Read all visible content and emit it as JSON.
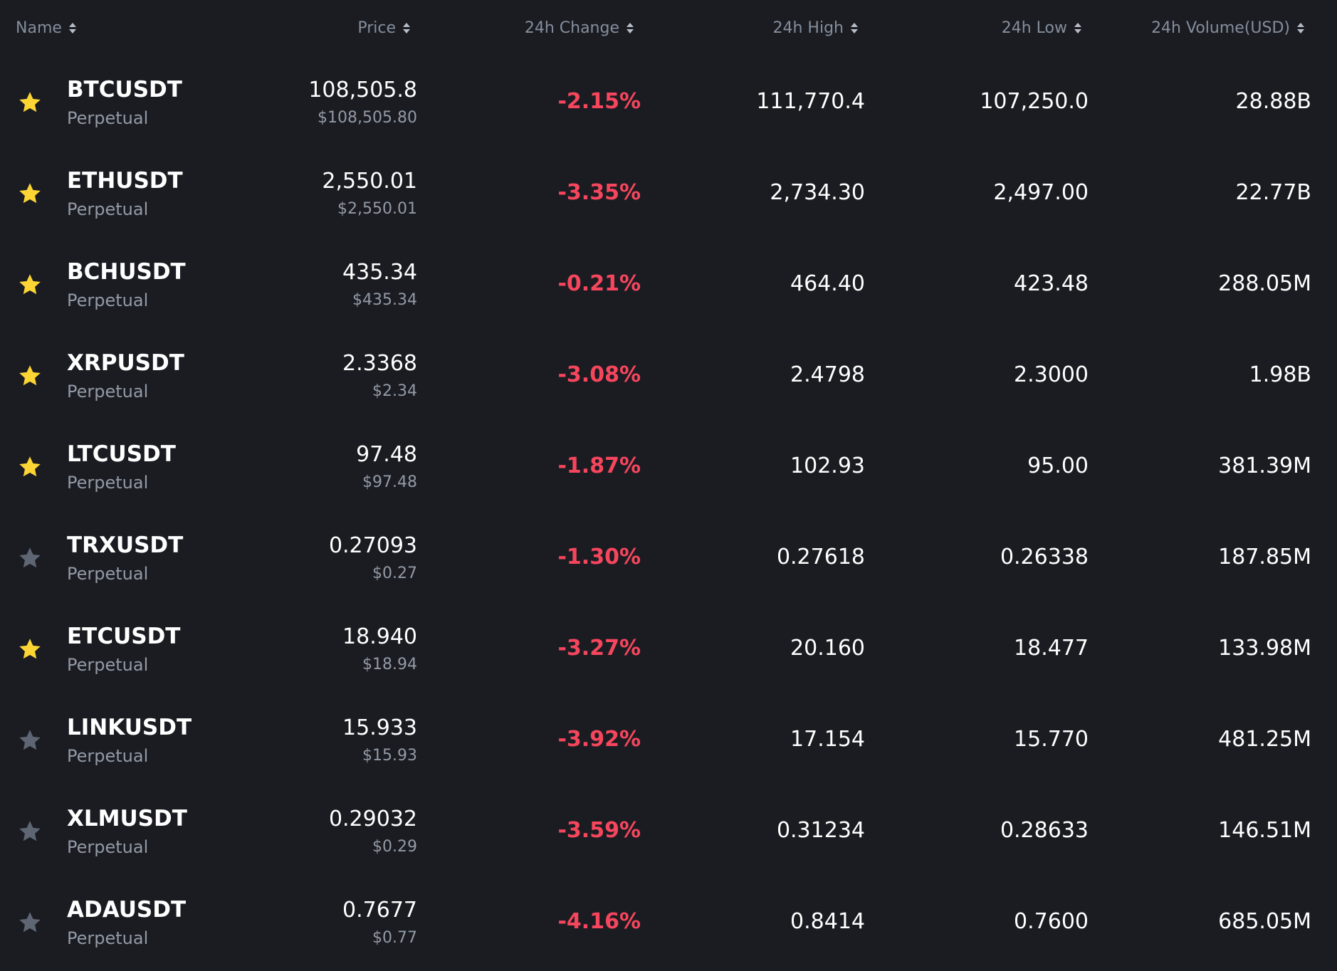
{
  "colors": {
    "background": "#1b1c22",
    "header_text": "#848e9c",
    "negative": "#f6465d",
    "star_active": "#fcd535",
    "star_inactive": "#5e6673"
  },
  "header": {
    "name": "Name",
    "price": "Price",
    "change": "24h Change",
    "high": "24h High",
    "low": "24h Low",
    "volume": "24h Volume(USD)"
  },
  "rows": [
    {
      "favorite": true,
      "symbol": "BTCUSDT",
      "contract": "Perpetual",
      "price": "108,505.8",
      "price_usd": "$108,505.80",
      "change": "-2.15%",
      "high": "111,770.4",
      "low": "107,250.0",
      "volume": "28.88B"
    },
    {
      "favorite": true,
      "symbol": "ETHUSDT",
      "contract": "Perpetual",
      "price": "2,550.01",
      "price_usd": "$2,550.01",
      "change": "-3.35%",
      "high": "2,734.30",
      "low": "2,497.00",
      "volume": "22.77B"
    },
    {
      "favorite": true,
      "symbol": "BCHUSDT",
      "contract": "Perpetual",
      "price": "435.34",
      "price_usd": "$435.34",
      "change": "-0.21%",
      "high": "464.40",
      "low": "423.48",
      "volume": "288.05M"
    },
    {
      "favorite": true,
      "symbol": "XRPUSDT",
      "contract": "Perpetual",
      "price": "2.3368",
      "price_usd": "$2.34",
      "change": "-3.08%",
      "high": "2.4798",
      "low": "2.3000",
      "volume": "1.98B"
    },
    {
      "favorite": true,
      "symbol": "LTCUSDT",
      "contract": "Perpetual",
      "price": "97.48",
      "price_usd": "$97.48",
      "change": "-1.87%",
      "high": "102.93",
      "low": "95.00",
      "volume": "381.39M"
    },
    {
      "favorite": false,
      "symbol": "TRXUSDT",
      "contract": "Perpetual",
      "price": "0.27093",
      "price_usd": "$0.27",
      "change": "-1.30%",
      "high": "0.27618",
      "low": "0.26338",
      "volume": "187.85M"
    },
    {
      "favorite": true,
      "symbol": "ETCUSDT",
      "contract": "Perpetual",
      "price": "18.940",
      "price_usd": "$18.94",
      "change": "-3.27%",
      "high": "20.160",
      "low": "18.477",
      "volume": "133.98M"
    },
    {
      "favorite": false,
      "symbol": "LINKUSDT",
      "contract": "Perpetual",
      "price": "15.933",
      "price_usd": "$15.93",
      "change": "-3.92%",
      "high": "17.154",
      "low": "15.770",
      "volume": "481.25M"
    },
    {
      "favorite": false,
      "symbol": "XLMUSDT",
      "contract": "Perpetual",
      "price": "0.29032",
      "price_usd": "$0.29",
      "change": "-3.59%",
      "high": "0.31234",
      "low": "0.28633",
      "volume": "146.51M"
    },
    {
      "favorite": false,
      "symbol": "ADAUSDT",
      "contract": "Perpetual",
      "price": "0.7677",
      "price_usd": "$0.77",
      "change": "-4.16%",
      "high": "0.8414",
      "low": "0.7600",
      "volume": "685.05M"
    }
  ]
}
